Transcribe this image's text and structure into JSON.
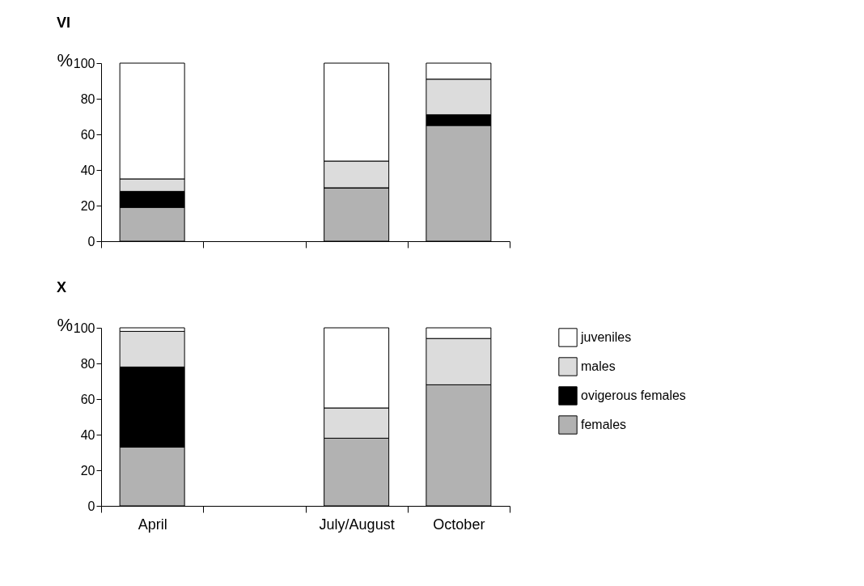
{
  "chart_data": [
    {
      "type": "bar",
      "title": "VI",
      "ylabel": "%",
      "stacked": true,
      "categories": [
        null,
        null,
        null,
        null
      ],
      "ylim": [
        0,
        100
      ],
      "yticks": [
        0,
        20,
        40,
        60,
        80,
        100
      ],
      "grid": false,
      "legend": false,
      "tick_labels": "y",
      "series": [
        {
          "color": "#b2b2b2",
          "values": [
            19,
            null,
            30,
            65
          ]
        },
        {
          "color": "#000000",
          "values": [
            9,
            null,
            0,
            6
          ]
        },
        {
          "color": "#dcdcdc",
          "values": [
            7,
            null,
            15,
            20
          ]
        },
        {
          "color": "#ffffff",
          "values": [
            65,
            null,
            55,
            9
          ]
        }
      ]
    },
    {
      "type": "bar",
      "title": "X",
      "ylabel": "%",
      "stacked": true,
      "categories": [
        "April",
        null,
        "July/August",
        "October"
      ],
      "ylim": [
        0,
        100
      ],
      "yticks": [
        0,
        20,
        40,
        60,
        80,
        100
      ],
      "grid": false,
      "legend": "right",
      "series": [
        {
          "name": "females",
          "color": "#b2b2b2",
          "values": [
            33,
            null,
            38,
            68
          ]
        },
        {
          "name": "ovigerous females",
          "color": "#000000",
          "values": [
            45,
            null,
            0,
            0
          ]
        },
        {
          "name": "males",
          "color": "#dcdcdc",
          "values": [
            20,
            null,
            17,
            26
          ]
        },
        {
          "name": "juveniles",
          "color": "#ffffff",
          "values": [
            2,
            null,
            45,
            6
          ]
        }
      ]
    }
  ]
}
